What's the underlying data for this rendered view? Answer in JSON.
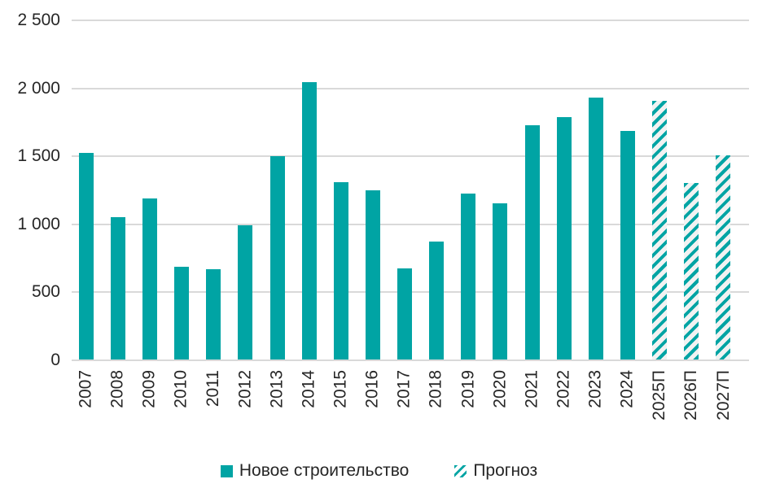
{
  "chart_data": {
    "type": "bar",
    "title": "",
    "xlabel": "",
    "ylabel": "",
    "categories": [
      "2007",
      "2008",
      "2009",
      "2010",
      "2011",
      "2012",
      "2013",
      "2014",
      "2015",
      "2016",
      "2017",
      "2018",
      "2019",
      "2020",
      "2021",
      "2022",
      "2023",
      "2024",
      "2025П",
      "2026П",
      "2027П"
    ],
    "values": [
      1520,
      1045,
      1185,
      685,
      665,
      990,
      1495,
      2040,
      1305,
      1245,
      670,
      865,
      1220,
      1150,
      1725,
      1785,
      1925,
      1680,
      1900,
      1300,
      1500
    ],
    "forecast_start_index": 18,
    "ylim": [
      0,
      2500
    ],
    "ytick_step": 500,
    "yticks": [
      {
        "value": 0,
        "label": "0"
      },
      {
        "value": 500,
        "label": "500"
      },
      {
        "value": 1000,
        "label": "1 000"
      },
      {
        "value": 1500,
        "label": "1 500"
      },
      {
        "value": 2000,
        "label": "2 000"
      },
      {
        "value": 2500,
        "label": "2 500"
      }
    ],
    "grid": true,
    "legend_position": "bottom",
    "legend": [
      {
        "label": "Новое строительство",
        "style": "solid"
      },
      {
        "label": "Прогноз",
        "style": "hatched"
      }
    ],
    "colors": {
      "bar": "#00a4a4",
      "grid": "#d9d9d9",
      "hatch_background": "#f2f2f2",
      "text": "#262626",
      "background": "#ffffff"
    }
  }
}
